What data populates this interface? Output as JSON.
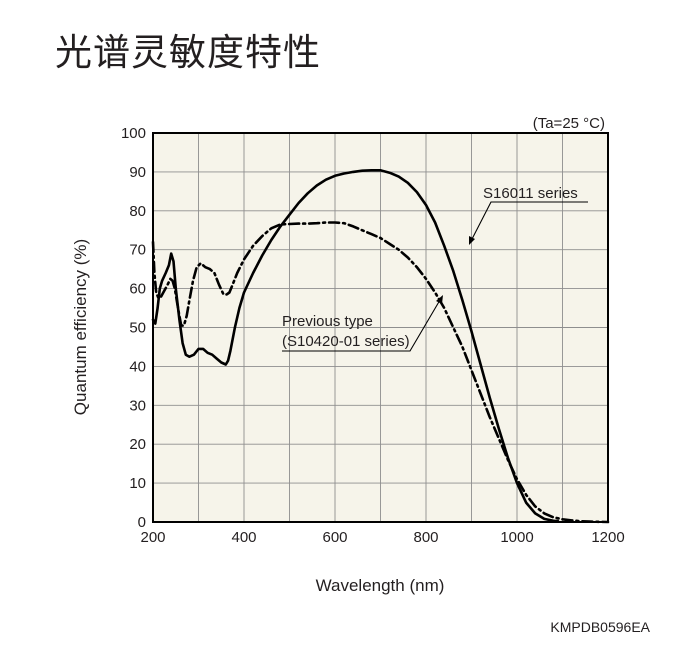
{
  "page": {
    "title": "光谱灵敏度特性",
    "figure_code": "KMPDB0596EA"
  },
  "chart_data": {
    "type": "line",
    "title": "光谱灵敏度特性",
    "condition": "(Ta=25 °C)",
    "xlabel": "Wavelength (nm)",
    "ylabel": "Quantum efficiency (%)",
    "xlim": [
      200,
      1200
    ],
    "ylim": [
      0,
      100
    ],
    "xticks": [
      200,
      400,
      600,
      800,
      1000,
      1200
    ],
    "yticks": [
      0,
      10,
      20,
      30,
      40,
      50,
      60,
      70,
      80,
      90,
      100
    ],
    "grid": true,
    "background_color": "#f6f4ea",
    "line_color": "#000000",
    "series": [
      {
        "name": "S16011 series",
        "style": "solid",
        "x": [
          200,
          205,
          210,
          215,
          220,
          228,
          235,
          240,
          245,
          250,
          258,
          265,
          272,
          280,
          290,
          300,
          310,
          320,
          330,
          340,
          350,
          360,
          365,
          370,
          380,
          390,
          400,
          420,
          440,
          460,
          480,
          500,
          520,
          540,
          560,
          580,
          600,
          620,
          640,
          660,
          680,
          700,
          720,
          740,
          760,
          780,
          800,
          820,
          840,
          860,
          880,
          900,
          920,
          940,
          960,
          980,
          1000,
          1020,
          1040,
          1060,
          1080,
          1090
        ],
        "y": [
          52,
          51,
          55,
          60,
          62,
          64,
          66,
          69,
          67,
          60,
          52,
          46,
          43,
          42.5,
          43,
          44.5,
          44.5,
          43.5,
          43,
          42,
          41,
          40.5,
          41.5,
          44,
          50,
          55,
          59,
          64,
          68.5,
          72.5,
          76,
          79,
          82,
          84.5,
          86.5,
          88,
          89,
          89.6,
          90,
          90.3,
          90.4,
          90.4,
          89.8,
          88.8,
          87.2,
          84.8,
          81.5,
          77,
          71,
          64.5,
          57,
          49,
          40.5,
          32,
          24,
          16.5,
          10,
          5,
          2.2,
          0.8,
          0.3,
          0.2
        ]
      },
      {
        "name": "Previous type (S10420-01 series)",
        "style": "dash-dot",
        "x": [
          200,
          203,
          207,
          212,
          218,
          225,
          232,
          238,
          243,
          248,
          255,
          262,
          268,
          274,
          280,
          288,
          296,
          305,
          315,
          325,
          335,
          345,
          355,
          362,
          368,
          375,
          385,
          400,
          420,
          440,
          460,
          480,
          500,
          520,
          540,
          560,
          580,
          600,
          620,
          640,
          660,
          680,
          700,
          720,
          740,
          760,
          780,
          800,
          820,
          840,
          860,
          880,
          900,
          920,
          940,
          960,
          980,
          1000,
          1020,
          1040,
          1060,
          1080,
          1100,
          1120,
          1140,
          1160,
          1180,
          1200
        ],
        "y": [
          72,
          64,
          59,
          57.5,
          58,
          59.5,
          61,
          62.5,
          62,
          60,
          55,
          50.5,
          50.5,
          53,
          57,
          62,
          65.5,
          66.5,
          65.5,
          65,
          64,
          61,
          58.5,
          58.5,
          59,
          61,
          64,
          67.5,
          71,
          73.5,
          75.5,
          76.5,
          76.6,
          76.7,
          76.7,
          76.8,
          77,
          77,
          76.8,
          76,
          75,
          74,
          73,
          71.5,
          70,
          68,
          65.5,
          62.5,
          59,
          55,
          50,
          45,
          39,
          33,
          27,
          21.5,
          16,
          11,
          7,
          4,
          2.2,
          1.2,
          0.7,
          0.4,
          0.2,
          0.1,
          0.05,
          0
        ]
      }
    ],
    "annotations": [
      {
        "text": "S16011 series",
        "series": "S16011 series"
      },
      {
        "text": "Previous type",
        "series": "Previous type (S10420-01 series)"
      },
      {
        "text": "(S10420-01 series)",
        "series": "Previous type (S10420-01 series)"
      }
    ]
  }
}
